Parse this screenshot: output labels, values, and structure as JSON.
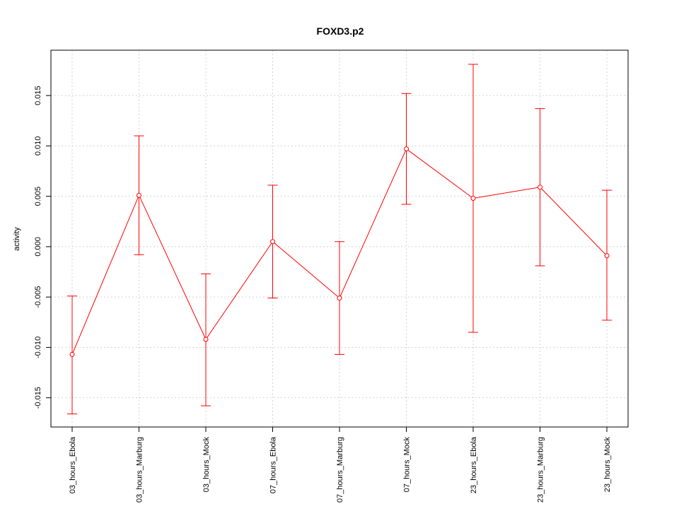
{
  "chart_data": {
    "type": "line",
    "title": "FOXD3.p2",
    "xlabel": "",
    "ylabel": "activity",
    "categories": [
      "03_hours_Ebola",
      "03_hours_Marburg",
      "03_hours_Mock",
      "07_hours_Ebola",
      "07_hours_Marburg",
      "07_hours_Mock",
      "23_hours_Ebola",
      "23_hours_Marburg",
      "23_hours_Mock"
    ],
    "series": [
      {
        "values": [
          -0.0107,
          0.0051,
          -0.0092,
          0.0005,
          -0.0051,
          0.0097,
          0.0048,
          0.0059,
          -0.0009
        ],
        "lower": [
          -0.0166,
          -0.0008,
          -0.0158,
          -0.0051,
          -0.0107,
          0.0042,
          -0.0085,
          -0.0019,
          -0.0073
        ],
        "upper": [
          -0.0049,
          0.011,
          -0.0027,
          0.0061,
          0.0005,
          0.0152,
          0.0181,
          0.0137,
          0.0056
        ],
        "color": "#ff0000"
      }
    ],
    "yticks": [
      "-0.015",
      "-0.010",
      "-0.005",
      "0.000",
      "0.005",
      "0.010",
      "0.015"
    ],
    "ytick_values": [
      -0.015,
      -0.01,
      -0.005,
      0.0,
      0.005,
      0.01,
      0.015
    ],
    "ylim": [
      -0.0179,
      0.0195
    ],
    "grid": true,
    "grid_color": "#d3d3d3",
    "axis_color": "#000000"
  }
}
